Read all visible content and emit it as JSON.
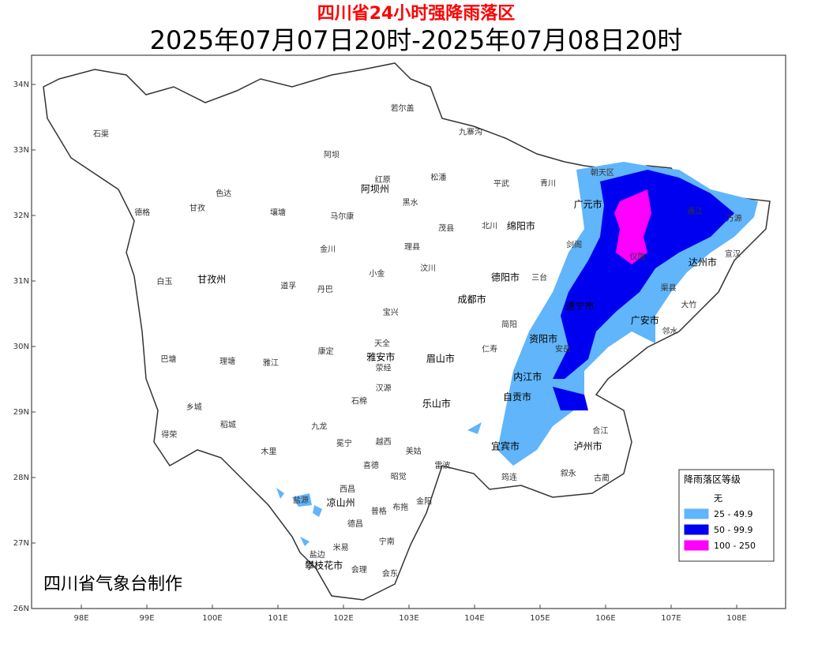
{
  "header": {
    "title": "四川省24小时强降雨落区",
    "subtitle": "2025年07月07日20时-2025年07月08日20时"
  },
  "axes": {
    "lon_ticks": [
      {
        "value": 98,
        "label": "98E"
      },
      {
        "value": 99,
        "label": "99E"
      },
      {
        "value": 100,
        "label": "100E"
      },
      {
        "value": 101,
        "label": "101E"
      },
      {
        "value": 102,
        "label": "102E"
      },
      {
        "value": 103,
        "label": "103E"
      },
      {
        "value": 104,
        "label": "104E"
      },
      {
        "value": 105,
        "label": "105E"
      },
      {
        "value": 106,
        "label": "106E"
      },
      {
        "value": 107,
        "label": "107E"
      },
      {
        "value": 108,
        "label": "108E"
      }
    ],
    "lat_ticks": [
      {
        "value": 26,
        "label": "26N"
      },
      {
        "value": 27,
        "label": "27N"
      },
      {
        "value": 28,
        "label": "28N"
      },
      {
        "value": 29,
        "label": "29N"
      },
      {
        "value": 30,
        "label": "30N"
      },
      {
        "value": 31,
        "label": "31N"
      },
      {
        "value": 32,
        "label": "32N"
      },
      {
        "value": 33,
        "label": "33N"
      },
      {
        "value": 34,
        "label": "34N"
      }
    ]
  },
  "legend": {
    "title": "降雨落区等级",
    "items": [
      {
        "label": "无",
        "color": "#ffffff"
      },
      {
        "label": "25 - 49.9",
        "color": "#61b5fa"
      },
      {
        "label": "50 - 99.9",
        "color": "#0000f0"
      },
      {
        "label": "100 - 250",
        "color": "#ff00ff"
      }
    ]
  },
  "credit": "四川省气象台制作",
  "places": [
    {
      "name": "石渠",
      "lon": 98.3,
      "lat": 33.24
    },
    {
      "name": "德格",
      "lon": 98.93,
      "lat": 32.04
    },
    {
      "name": "甘孜",
      "lon": 99.77,
      "lat": 32.11
    },
    {
      "name": "色达",
      "lon": 100.17,
      "lat": 32.33
    },
    {
      "name": "白玉",
      "lon": 99.27,
      "lat": 30.99
    },
    {
      "name": "甘孜州",
      "lon": 99.99,
      "lat": 31.02
    },
    {
      "name": "巴塘",
      "lon": 99.33,
      "lat": 29.8
    },
    {
      "name": "理塘",
      "lon": 100.23,
      "lat": 29.77
    },
    {
      "name": "乡城",
      "lon": 99.72,
      "lat": 29.07
    },
    {
      "name": "稻城",
      "lon": 100.24,
      "lat": 28.8
    },
    {
      "name": "得荣",
      "lon": 99.34,
      "lat": 28.65
    },
    {
      "name": "道孚",
      "lon": 101.16,
      "lat": 30.92
    },
    {
      "name": "丹巴",
      "lon": 101.72,
      "lat": 30.87
    },
    {
      "name": "康定",
      "lon": 101.73,
      "lat": 29.92
    },
    {
      "name": "雅江",
      "lon": 100.89,
      "lat": 29.75
    },
    {
      "name": "九龙",
      "lon": 101.63,
      "lat": 28.78
    },
    {
      "name": "木里",
      "lon": 100.86,
      "lat": 28.39
    },
    {
      "name": "盐源",
      "lon": 101.35,
      "lat": 27.65
    },
    {
      "name": "阿坝",
      "lon": 101.82,
      "lat": 32.92
    },
    {
      "name": "若尔盖",
      "lon": 102.9,
      "lat": 33.63
    },
    {
      "name": "九寨沟",
      "lon": 103.94,
      "lat": 33.27
    },
    {
      "name": "松潘",
      "lon": 103.45,
      "lat": 32.58
    },
    {
      "name": "红原",
      "lon": 102.6,
      "lat": 32.54
    },
    {
      "name": "阿坝州",
      "lon": 102.48,
      "lat": 32.4
    },
    {
      "name": "马尔康",
      "lon": 101.98,
      "lat": 31.98
    },
    {
      "name": "壤塘",
      "lon": 101.0,
      "lat": 32.04
    },
    {
      "name": "金川",
      "lon": 101.76,
      "lat": 31.48
    },
    {
      "name": "小金",
      "lon": 102.51,
      "lat": 31.11
    },
    {
      "name": "理县",
      "lon": 103.05,
      "lat": 31.52
    },
    {
      "name": "茂县",
      "lon": 103.57,
      "lat": 31.8
    },
    {
      "name": "汶川",
      "lon": 103.29,
      "lat": 31.19
    },
    {
      "name": "黑水",
      "lon": 103.02,
      "lat": 32.19
    },
    {
      "name": "平武",
      "lon": 104.41,
      "lat": 32.48
    },
    {
      "name": "青川",
      "lon": 105.12,
      "lat": 32.49
    },
    {
      "name": "北川",
      "lon": 104.23,
      "lat": 31.84
    },
    {
      "name": "绵阳市",
      "lon": 104.71,
      "lat": 31.83
    },
    {
      "name": "广元市",
      "lon": 105.73,
      "lat": 32.16
    },
    {
      "name": "朝天区",
      "lon": 105.95,
      "lat": 32.65
    },
    {
      "name": "剑阁",
      "lon": 105.52,
      "lat": 31.55
    },
    {
      "name": "通江",
      "lon": 107.36,
      "lat": 32.06
    },
    {
      "name": "万源",
      "lon": 107.96,
      "lat": 31.95
    },
    {
      "name": "宣汉",
      "lon": 107.94,
      "lat": 31.41
    },
    {
      "name": "达州市",
      "lon": 107.48,
      "lat": 31.28
    },
    {
      "name": "仪陇",
      "lon": 106.49,
      "lat": 31.37
    },
    {
      "name": "渠县",
      "lon": 106.96,
      "lat": 30.89
    },
    {
      "name": "大竹",
      "lon": 107.27,
      "lat": 30.63
    },
    {
      "name": "广安市",
      "lon": 106.6,
      "lat": 30.39
    },
    {
      "name": "邻水",
      "lon": 106.98,
      "lat": 30.23
    },
    {
      "name": "遂宁市",
      "lon": 105.61,
      "lat": 30.61
    },
    {
      "name": "德阳市",
      "lon": 104.47,
      "lat": 31.05
    },
    {
      "name": "成都市",
      "lon": 103.96,
      "lat": 30.71
    },
    {
      "name": "三台",
      "lon": 104.99,
      "lat": 31.05
    },
    {
      "name": "简阳",
      "lon": 104.53,
      "lat": 30.33
    },
    {
      "name": "仁寿",
      "lon": 104.23,
      "lat": 29.96
    },
    {
      "name": "安岳",
      "lon": 105.35,
      "lat": 29.96
    },
    {
      "name": "资阳市",
      "lon": 105.05,
      "lat": 30.11
    },
    {
      "name": "内江市",
      "lon": 104.81,
      "lat": 29.53
    },
    {
      "name": "自贡市",
      "lon": 104.65,
      "lat": 29.22
    },
    {
      "name": "宜宾市",
      "lon": 104.47,
      "lat": 28.47
    },
    {
      "name": "泸州市",
      "lon": 105.73,
      "lat": 28.47
    },
    {
      "name": "合江",
      "lon": 105.92,
      "lat": 28.71
    },
    {
      "name": "叙永",
      "lon": 105.43,
      "lat": 28.06
    },
    {
      "name": "古蔺",
      "lon": 105.94,
      "lat": 27.99
    },
    {
      "name": "筠连",
      "lon": 104.53,
      "lat": 28.0
    },
    {
      "name": "雅安市",
      "lon": 102.57,
      "lat": 29.83
    },
    {
      "name": "天全",
      "lon": 102.59,
      "lat": 30.04
    },
    {
      "name": "荥经",
      "lon": 102.61,
      "lat": 29.67
    },
    {
      "name": "宝兴",
      "lon": 102.72,
      "lat": 30.52
    },
    {
      "name": "眉山市",
      "lon": 103.48,
      "lat": 29.81
    },
    {
      "name": "乐山市",
      "lon": 103.42,
      "lat": 29.12
    },
    {
      "name": "汉源",
      "lon": 102.61,
      "lat": 29.36
    },
    {
      "name": "石棉",
      "lon": 102.24,
      "lat": 29.16
    },
    {
      "name": "冕宁",
      "lon": 102.01,
      "lat": 28.52
    },
    {
      "name": "越西",
      "lon": 102.61,
      "lat": 28.54
    },
    {
      "name": "喜德",
      "lon": 102.42,
      "lat": 28.18
    },
    {
      "name": "美姑",
      "lon": 103.07,
      "lat": 28.4
    },
    {
      "name": "雷波",
      "lon": 103.51,
      "lat": 28.18
    },
    {
      "name": "凉山州",
      "lon": 101.96,
      "lat": 27.61
    },
    {
      "name": "西昌",
      "lon": 102.06,
      "lat": 27.82
    },
    {
      "name": "昭觉",
      "lon": 102.84,
      "lat": 28.01
    },
    {
      "name": "普格",
      "lon": 102.54,
      "lat": 27.48
    },
    {
      "name": "布拖",
      "lon": 102.87,
      "lat": 27.54
    },
    {
      "name": "金阳",
      "lon": 103.23,
      "lat": 27.63
    },
    {
      "name": "德昌",
      "lon": 102.18,
      "lat": 27.29
    },
    {
      "name": "宁南",
      "lon": 102.66,
      "lat": 27.02
    },
    {
      "name": "米易",
      "lon": 101.96,
      "lat": 26.93
    },
    {
      "name": "盐边",
      "lon": 101.6,
      "lat": 26.82
    },
    {
      "name": "攀枝花市",
      "lon": 101.7,
      "lat": 26.65
    },
    {
      "name": "会理",
      "lon": 102.24,
      "lat": 26.59
    },
    {
      "name": "会东",
      "lon": 102.71,
      "lat": 26.53
    }
  ]
}
